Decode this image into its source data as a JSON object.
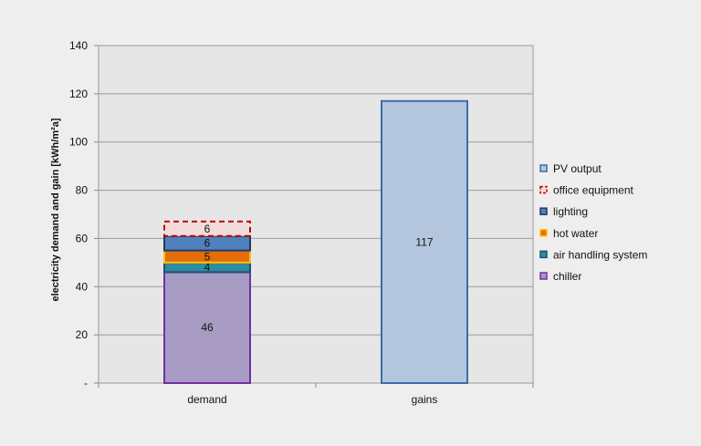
{
  "chart_data": {
    "type": "bar",
    "stacked": true,
    "categories": [
      "demand",
      "gains"
    ],
    "ylabel": "electricity demand and gain [kWh/m²a]",
    "xlabel": "",
    "ylim": [
      0,
      140
    ],
    "yticks": [
      0,
      20,
      40,
      60,
      80,
      100,
      120,
      140
    ],
    "ytick_labels": [
      "-",
      "20",
      "40",
      "60",
      "80",
      "100",
      "120",
      "140"
    ],
    "grid": true,
    "legend_position": "right",
    "series": [
      {
        "name": "chiller",
        "values": [
          46,
          0
        ],
        "labels": [
          "46",
          ""
        ],
        "fill": "#a79bc4",
        "stroke": "#7030a0",
        "dashed": false
      },
      {
        "name": "air handling system",
        "values": [
          4,
          0
        ],
        "labels": [
          "4",
          ""
        ],
        "fill": "#2e8ba0",
        "stroke": "#1f4e79",
        "dashed": false
      },
      {
        "name": "hot water",
        "values": [
          5,
          0
        ],
        "labels": [
          "5",
          ""
        ],
        "fill": "#e46c0a",
        "stroke": "#ffc000",
        "dashed": false
      },
      {
        "name": "lighting",
        "values": [
          6,
          0
        ],
        "labels": [
          "6",
          ""
        ],
        "fill": "#4f81bd",
        "stroke": "#1f3864",
        "dashed": false
      },
      {
        "name": "office equipment",
        "values": [
          6,
          0
        ],
        "labels": [
          "6",
          ""
        ],
        "fill": "#f2dcdb",
        "stroke": "#c00000",
        "dashed": true
      },
      {
        "name": "PV output",
        "values": [
          0,
          117
        ],
        "labels": [
          "",
          "117"
        ],
        "fill": "#b4c6de",
        "stroke": "#3a6fa5",
        "dashed": false
      }
    ],
    "legend_order": [
      "PV output",
      "office equipment",
      "lighting",
      "hot water",
      "air handling system",
      "chiller"
    ]
  }
}
